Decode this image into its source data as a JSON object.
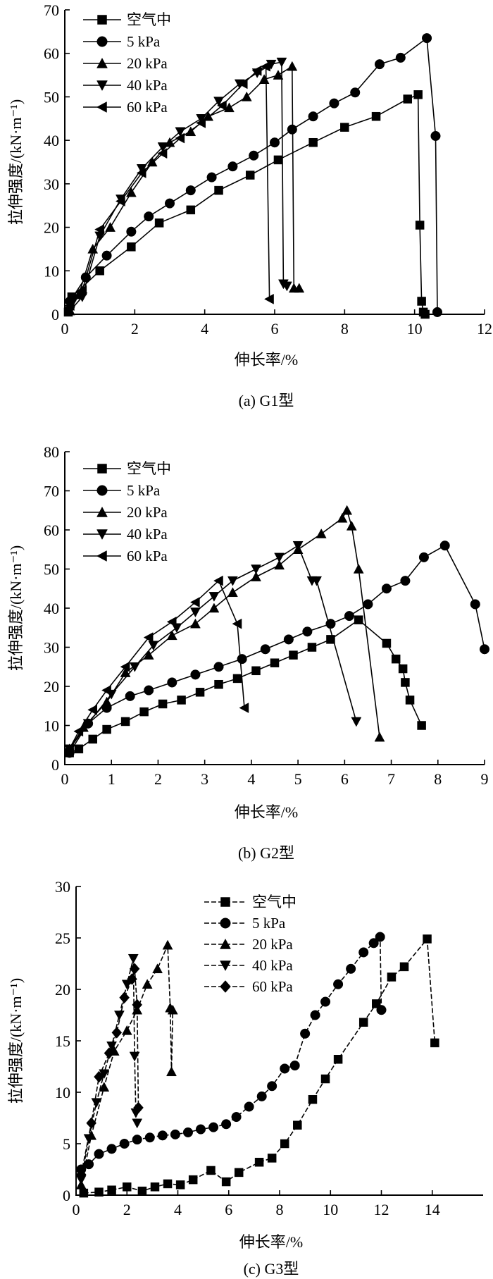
{
  "chart_data": [
    {
      "type": "line",
      "caption": "(a) G1型",
      "xlabel": "伸长率/%",
      "ylabel": "拉伸强度/(kN·m⁻¹)",
      "xlim": [
        0,
        12
      ],
      "ylim": [
        0,
        70
      ],
      "xticks": [
        0,
        2,
        4,
        6,
        8,
        10,
        12
      ],
      "yticks": [
        0,
        10,
        20,
        30,
        40,
        50,
        60,
        70
      ],
      "legend": "top-left",
      "series": [
        {
          "name": "空气中",
          "marker": "square",
          "x": [
            0.1,
            0.2,
            1.0,
            1.9,
            2.7,
            3.6,
            4.4,
            5.3,
            6.1,
            7.1,
            8.0,
            8.9,
            9.8,
            10.1,
            10.15,
            10.2,
            10.25,
            10.3
          ],
          "y": [
            0.5,
            4,
            10,
            15.5,
            21,
            24,
            28.5,
            32,
            35.5,
            39.5,
            43,
            45.5,
            49.5,
            50.5,
            20.5,
            3,
            0.5,
            0
          ]
        },
        {
          "name": "5 kPa",
          "marker": "circle",
          "x": [
            0.15,
            0.6,
            1.2,
            1.9,
            2.4,
            3.0,
            3.6,
            4.2,
            4.8,
            5.4,
            6.0,
            6.5,
            7.1,
            7.7,
            8.3,
            9.0,
            9.6,
            10.35,
            10.6,
            10.65
          ],
          "y": [
            3,
            8.5,
            13.5,
            19,
            22.5,
            25.5,
            28.5,
            31.5,
            34,
            36.5,
            39.5,
            42.5,
            45.5,
            48.5,
            51,
            57.5,
            59,
            63.5,
            41,
            0.5
          ]
        },
        {
          "name": "20 kPa",
          "marker": "triangle-up",
          "x": [
            0.15,
            0.4,
            0.8,
            1.3,
            1.9,
            2.5,
            3.0,
            3.6,
            4.1,
            4.7,
            5.2,
            5.7,
            6.1,
            6.5,
            6.55,
            6.7
          ],
          "y": [
            0.8,
            4.5,
            15,
            20,
            28,
            35,
            39.5,
            42,
            45.5,
            47.5,
            50,
            54,
            55,
            57,
            6,
            6
          ]
        },
        {
          "name": "40 kPa",
          "marker": "triangle-down",
          "x": [
            0.15,
            0.5,
            1.0,
            1.6,
            2.2,
            2.8,
            3.3,
            3.9,
            4.4,
            5.0,
            5.5,
            5.9,
            6.2,
            6.25,
            6.35
          ],
          "y": [
            0.8,
            4,
            18,
            26.5,
            33.5,
            38.5,
            42,
            45,
            49,
            53,
            55.5,
            57.5,
            58,
            7,
            6.5
          ]
        },
        {
          "name": "60 kPa",
          "marker": "triangle-left",
          "x": [
            0.15,
            0.5,
            1.0,
            1.6,
            2.2,
            2.8,
            3.3,
            3.9,
            4.5,
            5.1,
            5.5,
            5.75,
            5.85
          ],
          "y": [
            2,
            5.5,
            19.5,
            26,
            32.5,
            37,
            40.5,
            44,
            48,
            53,
            56,
            57,
            3.5
          ]
        }
      ]
    },
    {
      "type": "line",
      "caption": "(b) G2型",
      "xlabel": "伸长率/%",
      "ylabel": "拉伸强度/(kN·m⁻¹)",
      "xlim": [
        0,
        9
      ],
      "ylim": [
        0,
        80
      ],
      "xticks": [
        0,
        1,
        2,
        3,
        4,
        5,
        6,
        7,
        8,
        9
      ],
      "yticks": [
        0,
        10,
        20,
        30,
        40,
        50,
        60,
        70,
        80
      ],
      "legend": "top-left",
      "series": [
        {
          "name": "空气中",
          "marker": "square",
          "x": [
            0.1,
            0.3,
            0.6,
            0.9,
            1.3,
            1.7,
            2.1,
            2.5,
            2.9,
            3.3,
            3.7,
            4.1,
            4.5,
            4.9,
            5.3,
            5.7,
            6.3,
            6.9,
            7.1,
            7.25,
            7.3,
            7.4,
            7.65
          ],
          "y": [
            3,
            4,
            6.5,
            9,
            11,
            13.5,
            15.5,
            16.5,
            18.5,
            20.5,
            22,
            24,
            26,
            28,
            30,
            32,
            37,
            31,
            27,
            24.5,
            21,
            16.5,
            10
          ]
        },
        {
          "name": "5 kPa",
          "marker": "circle",
          "x": [
            0.1,
            0.5,
            0.9,
            1.4,
            1.8,
            2.3,
            2.8,
            3.3,
            3.8,
            4.3,
            4.8,
            5.2,
            5.7,
            6.1,
            6.5,
            6.9,
            7.3,
            7.7,
            8.15,
            8.8,
            9.0
          ],
          "y": [
            3,
            10.5,
            14.5,
            17.5,
            19,
            21,
            23,
            25,
            27,
            29.5,
            32,
            34,
            36,
            38,
            41,
            45,
            47,
            53,
            56,
            41,
            29.5
          ]
        },
        {
          "name": "20 kPa",
          "marker": "triangle-up",
          "x": [
            0.1,
            0.4,
            0.9,
            1.3,
            1.8,
            2.3,
            2.8,
            3.2,
            3.6,
            4.1,
            4.6,
            5.0,
            5.5,
            5.95,
            6.05,
            6.15,
            6.3,
            6.75
          ],
          "y": [
            4,
            9.5,
            16,
            23.5,
            28,
            33,
            36,
            40,
            44,
            48,
            51,
            55,
            59,
            63,
            65,
            61,
            50,
            7
          ]
        },
        {
          "name": "40 kPa",
          "marker": "triangle-down",
          "x": [
            0.1,
            0.5,
            1.0,
            1.5,
            1.9,
            2.4,
            2.8,
            3.2,
            3.6,
            4.1,
            4.6,
            5.0,
            5.3,
            5.4,
            6.25
          ],
          "y": [
            4,
            10.5,
            18,
            25,
            30.5,
            35,
            39,
            43,
            47,
            50,
            53,
            56,
            47,
            47,
            11
          ]
        },
        {
          "name": "60 kPa",
          "marker": "triangle-left",
          "x": [
            0.1,
            0.3,
            0.6,
            0.9,
            1.3,
            1.8,
            2.3,
            2.8,
            3.3,
            3.7,
            3.85
          ],
          "y": [
            4,
            8.5,
            14,
            19,
            25,
            32.5,
            36.5,
            41.5,
            47,
            36,
            14.5
          ]
        }
      ]
    },
    {
      "type": "line",
      "caption": "(c) G3型",
      "xlabel": "伸长率/%",
      "ylabel": "拉伸强度/(kN·m⁻¹)",
      "xlim": [
        0,
        16
      ],
      "ylim": [
        0,
        30
      ],
      "xticks": [
        0,
        2,
        4,
        6,
        8,
        10,
        12,
        14
      ],
      "yticks": [
        0,
        5,
        10,
        15,
        20,
        25,
        30
      ],
      "legend": "top-center",
      "series": [
        {
          "name": "空气中",
          "marker": "square",
          "x": [
            0.3,
            0.9,
            1.4,
            2.0,
            2.6,
            3.1,
            3.6,
            4.1,
            4.6,
            5.3,
            5.9,
            6.4,
            7.2,
            7.7,
            8.2,
            8.7,
            9.3,
            9.8,
            10.3,
            11.3,
            11.8,
            12.4,
            12.9,
            13.8,
            14.1
          ],
          "y": [
            0.2,
            0.3,
            0.5,
            0.8,
            0.4,
            0.8,
            1.1,
            1.0,
            1.5,
            2.4,
            1.3,
            2.2,
            3.2,
            3.6,
            5.0,
            6.8,
            9.3,
            11.3,
            13.2,
            16.8,
            18.6,
            21.2,
            22.2,
            24.9,
            14.8
          ]
        },
        {
          "name": "5 kPa",
          "marker": "circle",
          "x": [
            0.2,
            0.5,
            0.9,
            1.4,
            1.9,
            2.4,
            2.9,
            3.4,
            3.9,
            4.4,
            4.9,
            5.4,
            5.9,
            6.3,
            6.8,
            7.3,
            7.7,
            8.2,
            8.6,
            9.0,
            9.4,
            9.8,
            10.3,
            10.8,
            11.3,
            11.7,
            11.95,
            12.0
          ],
          "y": [
            2.5,
            3.0,
            4.0,
            4.5,
            5.0,
            5.4,
            5.6,
            5.8,
            5.9,
            6.1,
            6.4,
            6.6,
            6.9,
            7.6,
            8.6,
            9.6,
            10.6,
            12.3,
            12.6,
            15.7,
            17.5,
            18.8,
            20.5,
            22.0,
            23.6,
            24.5,
            25.1,
            18.0
          ]
        },
        {
          "name": "20 kPa",
          "marker": "triangle-up",
          "x": [
            0.2,
            0.6,
            1.1,
            1.5,
            2.0,
            2.4,
            2.8,
            3.2,
            3.6,
            3.7,
            3.75,
            3.8
          ],
          "y": [
            1.0,
            5.8,
            10.5,
            14.0,
            16.0,
            18.0,
            20.5,
            22.0,
            24.3,
            18.2,
            12.0,
            18.0
          ]
        },
        {
          "name": "40 kPa",
          "marker": "triangle-down",
          "x": [
            0.2,
            0.5,
            0.8,
            1.1,
            1.4,
            1.7,
            2.0,
            2.25,
            2.3,
            2.35,
            2.4
          ],
          "y": [
            1.5,
            5.5,
            9.0,
            11.8,
            14.5,
            17.5,
            20.5,
            23.0,
            13.5,
            8.0,
            7.0
          ]
        },
        {
          "name": "60 kPa",
          "marker": "diamond",
          "x": [
            0.2,
            0.6,
            0.9,
            1.3,
            1.6,
            1.9,
            2.2,
            2.3,
            2.4,
            2.45
          ],
          "y": [
            2.0,
            7.0,
            11.5,
            13.8,
            15.8,
            19.2,
            21.0,
            22.0,
            18.5,
            8.5
          ]
        }
      ]
    }
  ]
}
